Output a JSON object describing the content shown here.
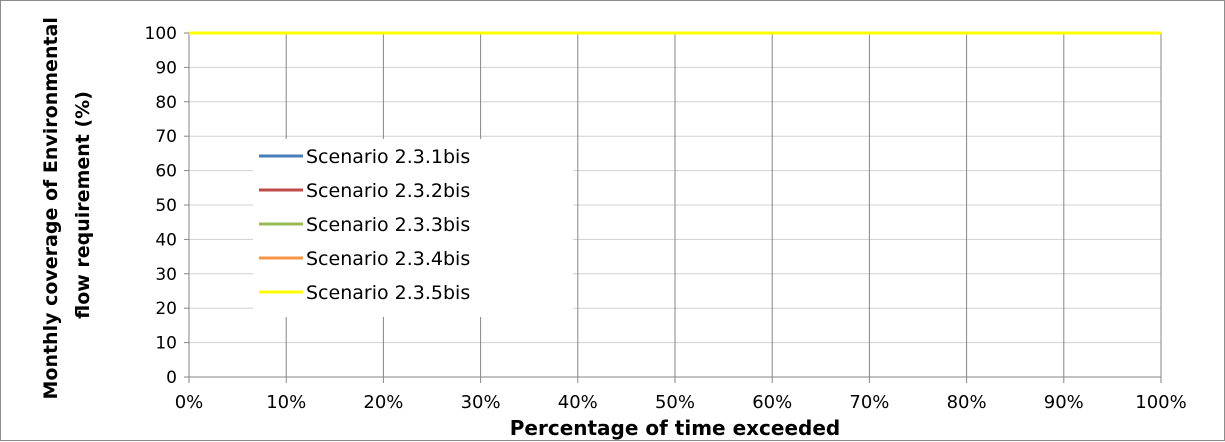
{
  "chart_data": {
    "type": "line",
    "xlabel": "Percentage of time exceeded",
    "ylabel_lines": [
      "Monthly coverage of Environmental",
      "flow requirement (%)"
    ],
    "x": [
      0,
      10,
      20,
      30,
      40,
      50,
      60,
      70,
      80,
      90,
      100
    ],
    "x_tick_labels": [
      "0%",
      "10%",
      "20%",
      "30%",
      "40%",
      "50%",
      "60%",
      "70%",
      "80%",
      "90%",
      "100%"
    ],
    "y_ticks": [
      0,
      10,
      20,
      30,
      40,
      50,
      60,
      70,
      80,
      90,
      100
    ],
    "ylim": [
      0,
      100
    ],
    "xlim": [
      0,
      100
    ],
    "grid": true,
    "legend_position": "left-middle",
    "series": [
      {
        "name": "Scenario 2.3.1bis",
        "color": "#4a7ebb",
        "values": [
          100,
          100,
          100,
          100,
          100,
          100,
          100,
          100,
          100,
          100,
          100
        ]
      },
      {
        "name": "Scenario 2.3.2bis",
        "color": "#be4b48",
        "values": [
          100,
          100,
          100,
          100,
          100,
          100,
          100,
          100,
          100,
          100,
          100
        ]
      },
      {
        "name": "Scenario 2.3.3bis",
        "color": "#98b954",
        "values": [
          100,
          100,
          100,
          100,
          100,
          100,
          100,
          100,
          100,
          100,
          100
        ]
      },
      {
        "name": "Scenario 2.3.4bis",
        "color": "#f79646",
        "values": [
          100,
          100,
          100,
          100,
          100,
          100,
          100,
          100,
          100,
          100,
          100
        ]
      },
      {
        "name": "Scenario 2.3.5bis",
        "color": "#ffff00",
        "values": [
          100,
          100,
          100,
          100,
          100,
          100,
          100,
          100,
          100,
          100,
          100
        ]
      }
    ]
  }
}
